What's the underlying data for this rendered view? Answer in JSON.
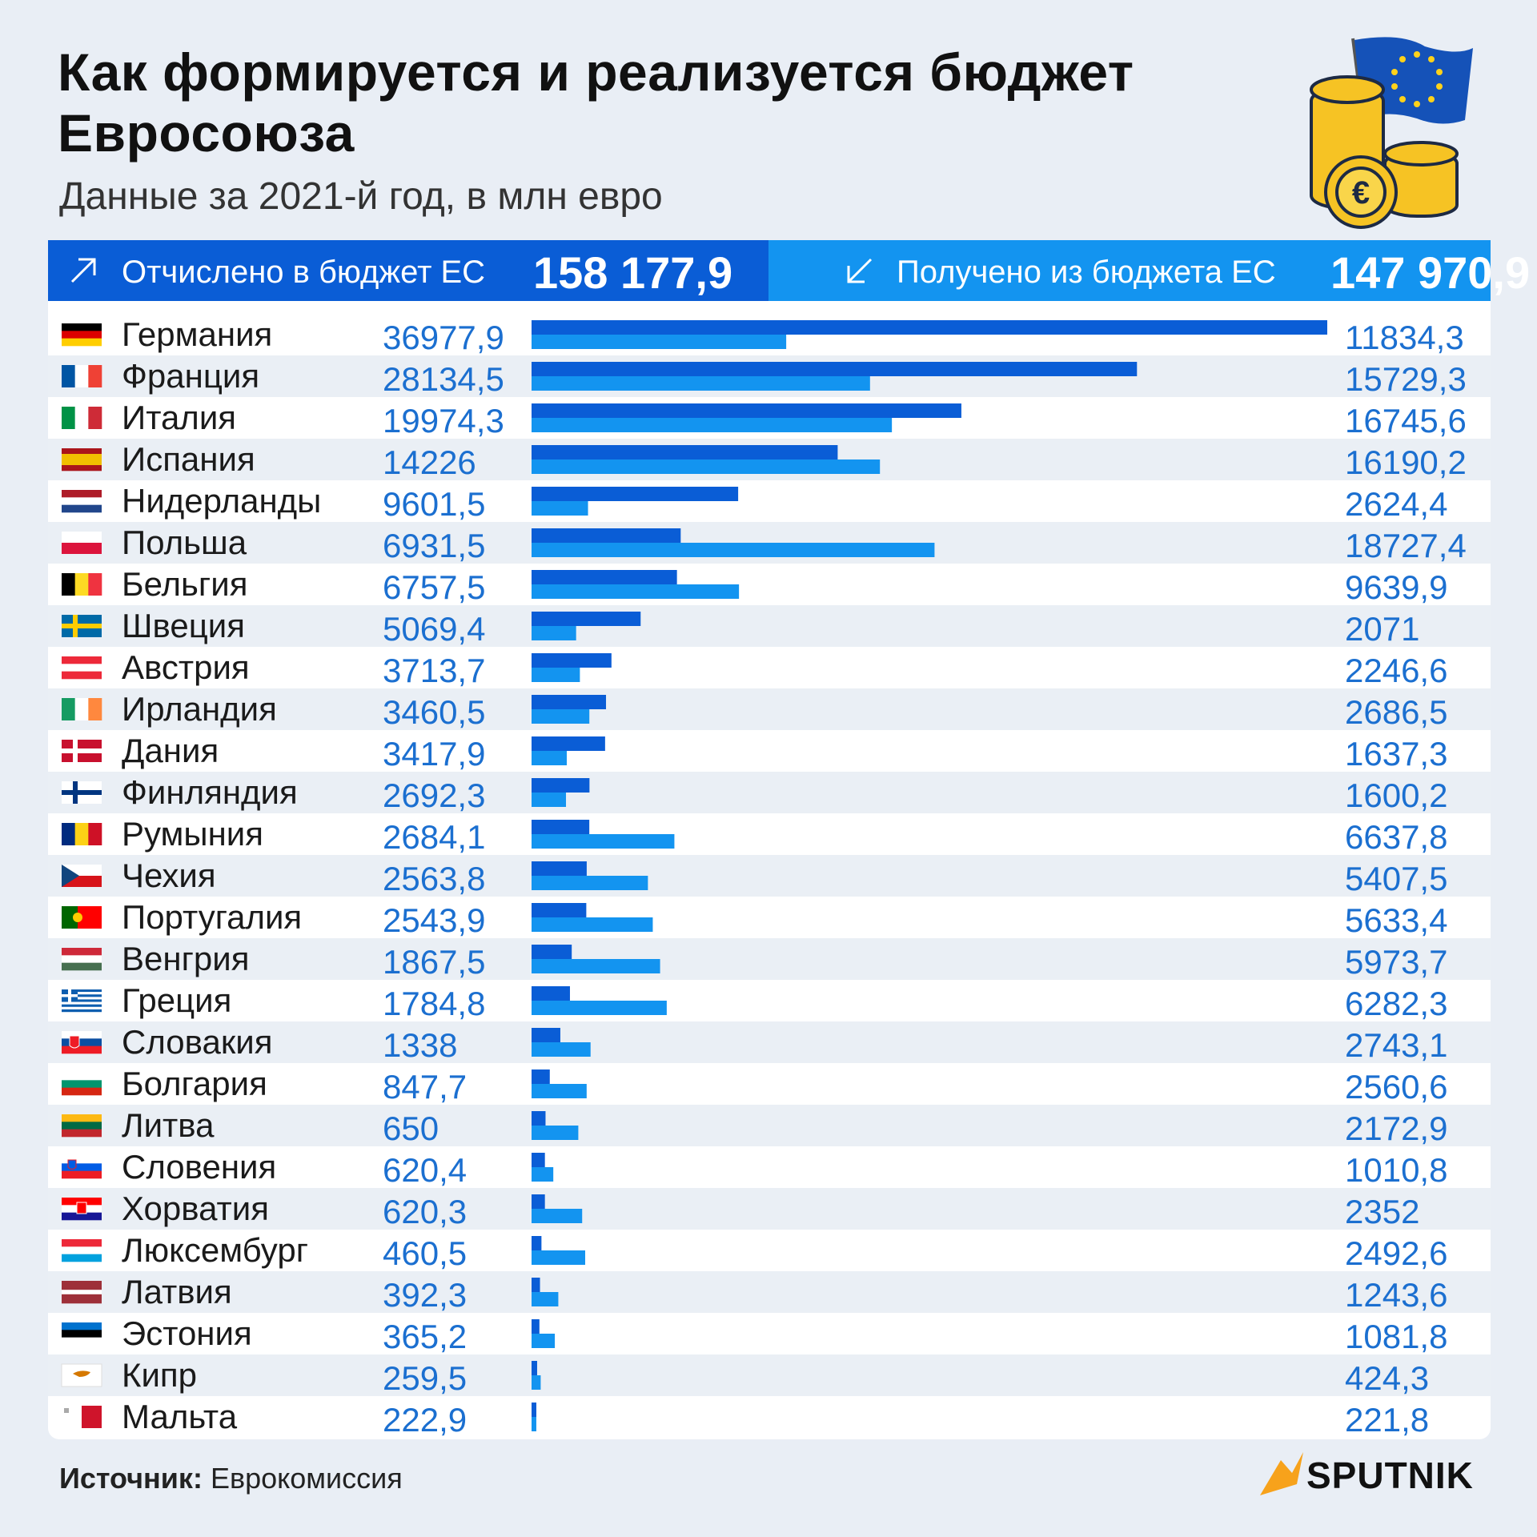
{
  "title": "Как формируется и реализуется бюджет Евросоюза",
  "subtitle": "Данные за 2021-й год, в млн евро",
  "header": {
    "paid_label": "Отчислено в бюджет ЕС",
    "paid_total": "158 177,9",
    "received_label": "Получено из бюджета ЕС",
    "received_total": "147 970,9"
  },
  "source": {
    "label": "Источник:",
    "value": "Еврокомиссия"
  },
  "brand": "SPUTNIK",
  "colors": {
    "paid": "#0a5dd6",
    "received": "#1394f0",
    "stripe": "#eaeff5",
    "number": "#1b6fd0"
  },
  "chart_data": {
    "type": "bar",
    "categories": [
      "Германия",
      "Франция",
      "Италия",
      "Испания",
      "Нидерланды",
      "Польша",
      "Бельгия",
      "Швеция",
      "Австрия",
      "Ирландия",
      "Дания",
      "Финляндия",
      "Румыния",
      "Чехия",
      "Португалия",
      "Венгрия",
      "Греция",
      "Словакия",
      "Болгария",
      "Литва",
      "Словения",
      "Хорватия",
      "Люксембург",
      "Латвия",
      "Эстония",
      "Кипр",
      "Мальта"
    ],
    "flags": [
      "germany-flag",
      "france-flag",
      "italy-flag",
      "spain-flag",
      "netherlands-flag",
      "poland-flag",
      "belgium-flag",
      "sweden-flag",
      "austria-flag",
      "ireland-flag",
      "denmark-flag",
      "finland-flag",
      "romania-flag",
      "czechia-flag",
      "portugal-flag",
      "hungary-flag",
      "greece-flag",
      "slovakia-flag",
      "bulgaria-flag",
      "lithuania-flag",
      "slovenia-flag",
      "croatia-flag",
      "luxembourg-flag",
      "latvia-flag",
      "estonia-flag",
      "cyprus-flag",
      "malta-flag"
    ],
    "series": [
      {
        "name": "Отчислено в бюджет ЕС",
        "values": [
          36977.9,
          28134.5,
          19974.3,
          14226,
          9601.5,
          6931.5,
          6757.5,
          5069.4,
          3713.7,
          3460.5,
          3417.9,
          2692.3,
          2684.1,
          2563.8,
          2543.9,
          1867.5,
          1784.8,
          1338,
          847.7,
          650,
          620.4,
          620.3,
          460.5,
          392.3,
          365.2,
          259.5,
          222.9
        ],
        "labels": [
          "36977,9",
          "28134,5",
          "19974,3",
          "14226",
          "9601,5",
          "6931,5",
          "6757,5",
          "5069,4",
          "3713,7",
          "3460,5",
          "3417,9",
          "2692,3",
          "2684,1",
          "2563,8",
          "2543,9",
          "1867,5",
          "1784,8",
          "1338",
          "847,7",
          "650",
          "620,4",
          "620,3",
          "460,5",
          "392,3",
          "365,2",
          "259,5",
          "222,9"
        ]
      },
      {
        "name": "Получено из бюджета ЕС",
        "values": [
          11834.3,
          15729.3,
          16745.6,
          16190.2,
          2624.4,
          18727.4,
          9639.9,
          2071,
          2246.6,
          2686.5,
          1637.3,
          1600.2,
          6637.8,
          5407.5,
          5633.4,
          5973.7,
          6282.3,
          2743.1,
          2560.6,
          2172.9,
          1010.8,
          2352,
          2492.6,
          1243.6,
          1081.8,
          424.3,
          221.8
        ],
        "labels": [
          "11834,3",
          "15729,3",
          "16745,6",
          "16190,2",
          "2624,4",
          "18727,4",
          "9639,9",
          "2071",
          "2246,6",
          "2686,5",
          "1637,3",
          "1600,2",
          "6637,8",
          "5407,5",
          "5633,4",
          "5973,7",
          "6282,3",
          "2743,1",
          "2560,6",
          "2172,9",
          "1010,8",
          "2352",
          "2492,6",
          "1243,6",
          "1081,8",
          "424,3",
          "221,8"
        ]
      }
    ],
    "xlim": [
      0,
      36977.9
    ]
  }
}
